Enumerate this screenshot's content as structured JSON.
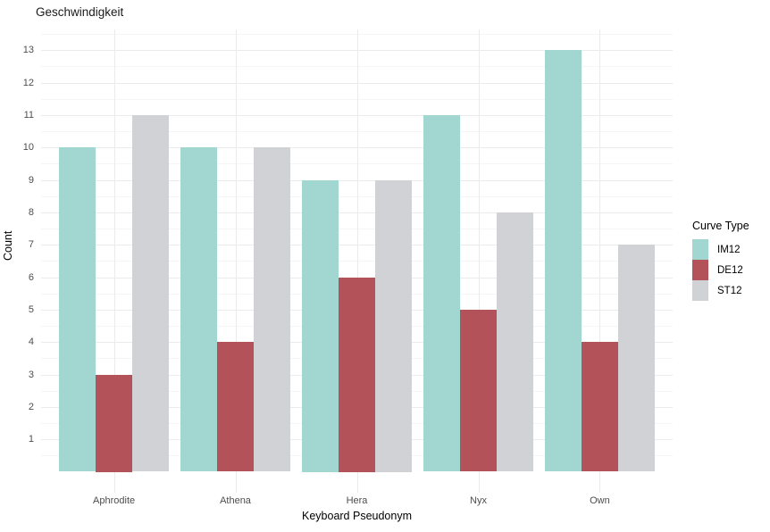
{
  "chart_data": {
    "type": "bar",
    "subtype": "grouped",
    "title": "Geschwindigkeit",
    "xlabel": "Keyboard Pseudonym",
    "ylabel": "Count",
    "categories": [
      "Aphrodite",
      "Athena",
      "Hera",
      "Nyx",
      "Own"
    ],
    "series": [
      {
        "name": "IM12",
        "color": "#A2D6D1",
        "values": [
          10,
          10,
          9,
          11,
          13
        ]
      },
      {
        "name": "DE12",
        "color": "#B4525A",
        "values": [
          3,
          4,
          6,
          5,
          4
        ]
      },
      {
        "name": "ST12",
        "color": "#D0D2D5",
        "values": [
          11,
          10,
          9,
          8,
          7
        ]
      }
    ],
    "legend": {
      "title": "Curve Type",
      "position": "right"
    },
    "yticks": [
      1,
      2,
      3,
      4,
      5,
      6,
      7,
      8,
      9,
      10,
      11,
      12,
      13
    ],
    "ylim": [
      -0.65,
      13.65
    ],
    "grid": {
      "major_color": "#EBEBEB",
      "minor_color": "#F5F5F5",
      "background": "#FFFFFF"
    }
  }
}
